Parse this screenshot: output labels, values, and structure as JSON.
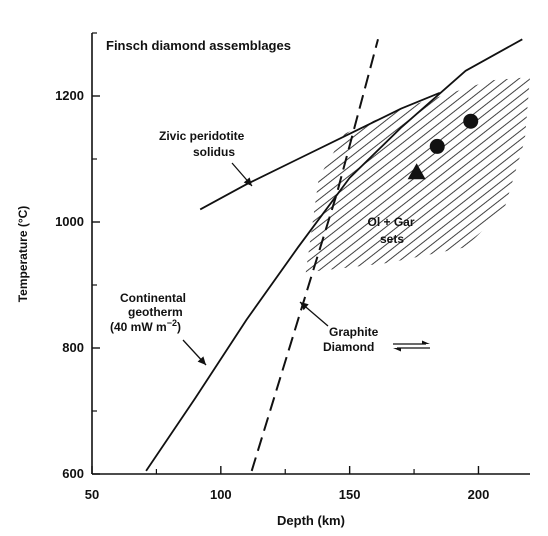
{
  "chart_data": {
    "type": "line",
    "title": "Finsch diamond assemblages",
    "xlabel": "Depth (km)",
    "ylabel": "Temperature (°C)",
    "xlim": [
      50,
      220
    ],
    "ylim": [
      600,
      1300
    ],
    "x_ticks": [
      "50",
      "100",
      "150",
      "200"
    ],
    "y_ticks": [
      "600",
      "800",
      "1000",
      "1200"
    ],
    "series": [
      {
        "name": "Zivic peridotite solidus",
        "style": "solid",
        "points": [
          [
            92,
            1020
          ],
          [
            110,
            1060
          ],
          [
            130,
            1100
          ],
          [
            150,
            1140
          ],
          [
            170,
            1180
          ],
          [
            185,
            1205
          ]
        ]
      },
      {
        "name": "Continental geotherm (40 mW m⁻²)",
        "style": "solid",
        "points": [
          [
            71,
            605
          ],
          [
            90,
            720
          ],
          [
            110,
            845
          ],
          [
            130,
            960
          ],
          [
            150,
            1070
          ],
          [
            170,
            1150
          ],
          [
            195,
            1240
          ],
          [
            217,
            1290
          ]
        ]
      },
      {
        "name": "Graphite Diamond",
        "style": "dashed",
        "points": [
          [
            112,
            605
          ],
          [
            130,
            845
          ],
          [
            145,
            1045
          ],
          [
            161,
            1290
          ]
        ]
      }
    ],
    "shaded_region": {
      "label": "Ol + Gar sets",
      "points": [
        [
          133,
          920
        ],
        [
          138,
          1070
        ],
        [
          148,
          1140
        ],
        [
          170,
          1180
        ],
        [
          205,
          1225
        ],
        [
          220,
          1230
        ],
        [
          218,
          1130
        ],
        [
          210,
          1020
        ],
        [
          195,
          960
        ],
        [
          165,
          935
        ]
      ]
    },
    "markers": [
      {
        "shape": "circle",
        "x": 184,
        "y": 1120
      },
      {
        "shape": "circle",
        "x": 197,
        "y": 1160
      },
      {
        "shape": "triangle",
        "x": 176,
        "y": 1078
      }
    ],
    "annotations": {
      "solidus_label": [
        "Zivic peridotite",
        "solidus"
      ],
      "geotherm_label_1": "Continental",
      "geotherm_label_2": "geotherm",
      "geotherm_label_3": "(40 mW m",
      "geotherm_label_sup": "−2",
      "geotherm_label_close": ")",
      "sets_label": [
        "Ol + Gar",
        "sets"
      ],
      "phase_label": [
        "Graphite",
        "Diamond"
      ]
    },
    "grid": false,
    "legend": "none"
  },
  "colors": {
    "ink": "#111111",
    "background": "#ffffff"
  }
}
